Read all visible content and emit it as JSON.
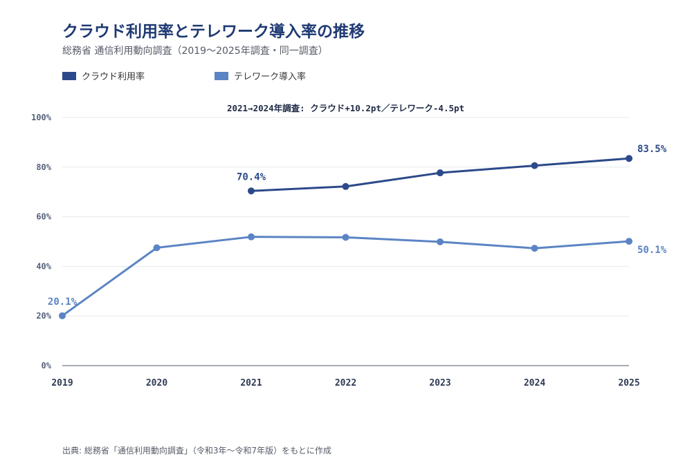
{
  "header": {
    "title": "クラウド利用率とテレワーク導入率の推移",
    "subtitle": "総務省 通信利用動向調査（2019〜2025年調査・同一調査）"
  },
  "annotation": "2021→2024年調査: クラウド+10.2pt／テレワーク-4.5pt",
  "source": "出典: 総務省「通信利用動向調査」（令和3年〜令和7年版）をもとに作成",
  "colors": {
    "cloud": "#2c4a8a",
    "telework": "#5b84c4",
    "grid": "#e3e7ee",
    "axis": "#6f7a8c",
    "tick": "#56627a"
  },
  "chart_data": {
    "type": "line",
    "categories": [
      "2019",
      "2020",
      "2021",
      "2022",
      "2023",
      "2024",
      "2025"
    ],
    "ylim": [
      0,
      100
    ],
    "yticks": [
      0,
      20,
      40,
      60,
      80,
      100
    ],
    "ytick_labels": [
      "0%",
      "20%",
      "40%",
      "60%",
      "80%",
      "100%"
    ],
    "grid": true,
    "legend": "top-left",
    "series": [
      {
        "name": "クラウド利用率",
        "color": "#2c4a8a",
        "values": [
          null,
          null,
          70.4,
          72.2,
          77.7,
          80.6,
          83.5
        ],
        "labels": {
          "2021": "70.4%",
          "2025": "83.5%"
        }
      },
      {
        "name": "テレワーク導入率",
        "color": "#5b84c4",
        "values": [
          20.1,
          47.5,
          51.9,
          51.7,
          49.9,
          47.3,
          50.1
        ],
        "labels": {
          "2019": "20.1%",
          "2025": "50.1%"
        }
      }
    ]
  }
}
